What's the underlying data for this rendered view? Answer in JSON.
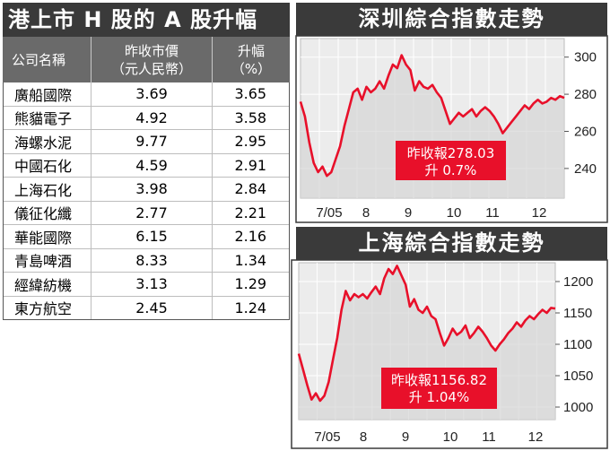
{
  "table": {
    "title": "港上市 H 股的 A 股升幅",
    "headers": {
      "name": "公司名稱",
      "price_l1": "昨收市價",
      "price_l2": "（元人民幣）",
      "rise_l1": "升幅",
      "rise_l2": "（%）"
    },
    "rows": [
      {
        "name": "廣船國際",
        "price": "3.69",
        "rise": "3.65"
      },
      {
        "name": "熊貓電子",
        "price": "4.92",
        "rise": "3.58"
      },
      {
        "name": "海螺水泥",
        "price": "9.77",
        "rise": "2.95"
      },
      {
        "name": "中國石化",
        "price": "4.59",
        "rise": "2.91"
      },
      {
        "name": "上海石化",
        "price": "3.98",
        "rise": "2.84"
      },
      {
        "name": "儀征化纖",
        "price": "2.77",
        "rise": "2.21"
      },
      {
        "name": "華能國際",
        "price": "6.15",
        "rise": "2.16"
      },
      {
        "name": "青島啤酒",
        "price": "8.33",
        "rise": "1.34"
      },
      {
        "name": "經緯紡機",
        "price": "3.13",
        "rise": "1.29"
      },
      {
        "name": "東方航空",
        "price": "2.45",
        "rise": "1.24"
      }
    ]
  },
  "chart_data": [
    {
      "type": "line",
      "title": "深圳綜合指數走勢",
      "x_tick_labels": [
        "7/05",
        "8",
        "9",
        "10",
        "11",
        "12"
      ],
      "y_ticks": [
        240,
        260,
        280,
        300
      ],
      "ylim": [
        224,
        310
      ],
      "annotation_line1": "昨收報278.03",
      "annotation_line2": "升 0.7%",
      "grid": true,
      "line_color": "#e8102a",
      "x": [
        0,
        3,
        6,
        9,
        12,
        15,
        18,
        21,
        24,
        27,
        30,
        33,
        36,
        39,
        42,
        45,
        48,
        51,
        54,
        57,
        60,
        63,
        66,
        69,
        72,
        75,
        78,
        81,
        84,
        87,
        90,
        93,
        96,
        99,
        102,
        105,
        108,
        111,
        114,
        117,
        120,
        123,
        126,
        129,
        132,
        135,
        138,
        141,
        144,
        147,
        150,
        153,
        156,
        159,
        162,
        165,
        168,
        171,
        174,
        177,
        180
      ],
      "values": [
        276,
        268,
        254,
        243,
        238,
        241,
        236,
        238,
        245,
        252,
        263,
        272,
        281,
        283,
        277,
        284,
        281,
        283,
        287,
        283,
        290,
        296,
        294,
        301,
        296,
        293,
        282,
        287,
        284,
        283,
        285,
        281,
        278,
        271,
        264,
        267,
        270,
        268,
        270,
        272,
        268,
        271,
        273,
        271,
        268,
        264,
        259,
        262,
        265,
        268,
        271,
        274,
        272,
        275,
        277,
        275,
        276,
        278,
        277,
        279,
        278
      ]
    },
    {
      "type": "line",
      "title": "上海綜合指數走勢",
      "x_tick_labels": [
        "7/05",
        "8",
        "9",
        "10",
        "11",
        "12"
      ],
      "y_ticks": [
        1000,
        1050,
        1100,
        1150,
        1200
      ],
      "ylim": [
        980,
        1230
      ],
      "annotation_line1": "昨收報1156.82",
      "annotation_line2": "升 1.04%",
      "grid": true,
      "line_color": "#e8102a",
      "x": [
        0,
        3,
        6,
        9,
        12,
        15,
        18,
        21,
        24,
        27,
        30,
        33,
        36,
        39,
        42,
        45,
        48,
        51,
        54,
        57,
        60,
        63,
        66,
        69,
        72,
        75,
        78,
        81,
        84,
        87,
        90,
        93,
        96,
        99,
        102,
        105,
        108,
        111,
        114,
        117,
        120,
        123,
        126,
        129,
        132,
        135,
        138,
        141,
        144,
        147,
        150,
        153,
        156,
        159,
        162,
        165,
        168,
        171,
        174,
        177,
        180
      ],
      "values": [
        1085,
        1060,
        1035,
        1012,
        1022,
        1010,
        1018,
        1040,
        1075,
        1110,
        1155,
        1185,
        1170,
        1180,
        1175,
        1180,
        1173,
        1183,
        1192,
        1180,
        1205,
        1220,
        1212,
        1225,
        1210,
        1195,
        1160,
        1172,
        1155,
        1150,
        1160,
        1145,
        1140,
        1118,
        1098,
        1110,
        1125,
        1115,
        1120,
        1130,
        1110,
        1118,
        1128,
        1120,
        1110,
        1098,
        1090,
        1100,
        1108,
        1118,
        1125,
        1135,
        1128,
        1138,
        1145,
        1140,
        1148,
        1155,
        1150,
        1158,
        1157
      ]
    }
  ]
}
